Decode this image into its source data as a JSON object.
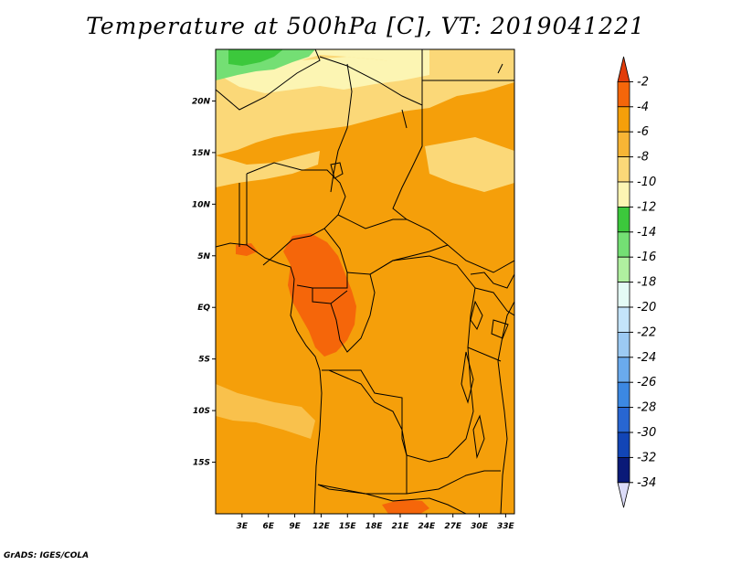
{
  "title": "Temperature at 500hPa [C], VT: 2019041221",
  "credit": "GrADS: IGES/COLA",
  "map": {
    "lon_range": [
      0,
      34
    ],
    "lat_range": [
      -20,
      25
    ],
    "x_ticks": [
      {
        "value": 3,
        "label": "3E"
      },
      {
        "value": 6,
        "label": "6E"
      },
      {
        "value": 9,
        "label": "9E"
      },
      {
        "value": 12,
        "label": "12E"
      },
      {
        "value": 15,
        "label": "15E"
      },
      {
        "value": 18,
        "label": "18E"
      },
      {
        "value": 21,
        "label": "21E"
      },
      {
        "value": 24,
        "label": "24E"
      },
      {
        "value": 27,
        "label": "27E"
      },
      {
        "value": 30,
        "label": "30E"
      },
      {
        "value": 33,
        "label": "33E"
      }
    ],
    "y_ticks": [
      {
        "value": 20,
        "label": "20N"
      },
      {
        "value": 15,
        "label": "15N"
      },
      {
        "value": 10,
        "label": "10N"
      },
      {
        "value": 5,
        "label": "5N"
      },
      {
        "value": 0,
        "label": "EQ"
      },
      {
        "value": -5,
        "label": "5S"
      },
      {
        "value": -10,
        "label": "10S"
      },
      {
        "value": -15,
        "label": "15S"
      }
    ]
  },
  "colorbar": {
    "levels": [
      "-2",
      "-4",
      "-6",
      "-8",
      "-10",
      "-12",
      "-14",
      "-16",
      "-18",
      "-20",
      "-22",
      "-24",
      "-26",
      "-28",
      "-30",
      "-32",
      "-34"
    ],
    "colors": [
      "#e23c0a",
      "#f5660a",
      "#f59f0a",
      "#f7b535",
      "#fbd878",
      "#fcf5b3",
      "#3cc83c",
      "#74df74",
      "#b0f0a0",
      "#e4fbf5",
      "#c4e4fa",
      "#9ccaf3",
      "#6aaaed",
      "#3c88e2",
      "#2866d2",
      "#1245b6",
      "#0a1a78",
      "#dcdcf8"
    ]
  },
  "field": {
    "dominant": "#f59f0a",
    "warm_core": "#f5660a",
    "cool_north": "#fbd878",
    "coolest_north": "#fcf5b3",
    "green_patch": "#74df74",
    "green_core": "#3cc83c"
  }
}
